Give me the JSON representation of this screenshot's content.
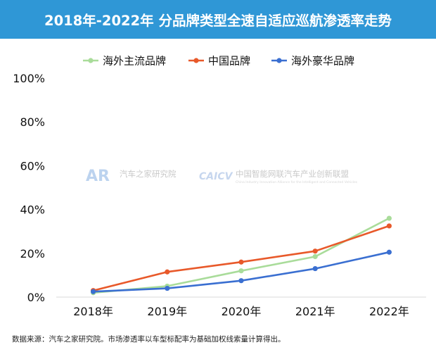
{
  "chart_data": {
    "type": "line",
    "title": "2018年-2022年 分品牌类型全速自适应巡航渗透率走势",
    "categories": [
      "2018年",
      "2019年",
      "2020年",
      "2021年",
      "2022年"
    ],
    "series": [
      {
        "name": "海外主流品牌",
        "color": "#a9dc9a",
        "values": [
          2,
          5,
          12,
          18.5,
          36
        ]
      },
      {
        "name": "中国品牌",
        "color": "#e8592a",
        "values": [
          3,
          11.5,
          16,
          21,
          32.5
        ]
      },
      {
        "name": "海外豪华品牌",
        "color": "#3a6fd1",
        "values": [
          2.5,
          4,
          7.5,
          13,
          20.5
        ]
      }
    ],
    "yticks": [
      "0%",
      "20%",
      "40%",
      "60%",
      "80%",
      "100%"
    ],
    "ylim": [
      0,
      100
    ],
    "grid": false,
    "legend": "top-center",
    "xlabel": "",
    "ylabel": ""
  },
  "watermarks": {
    "left_logo": "AR",
    "left_text": "汽车之家研究院",
    "right_logo": "CAICV",
    "right_text": "中国智能网联汽车产业创新联盟",
    "right_sub": "China Industry Innovation Alliance for the Intelligent and Connected Vehicles"
  },
  "footer": "数据来源：汽车之家研究院。市场渗透率以车型标配率为基础加权线索量计算得出。"
}
